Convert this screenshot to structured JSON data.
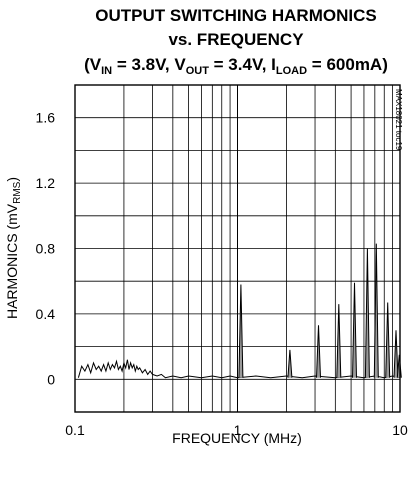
{
  "chart_data": {
    "type": "line",
    "title": {
      "line1": "OUTPUT SWITCHING HARMONICS",
      "line2": "vs. FREQUENCY",
      "line3_parts": [
        "(V",
        "IN",
        " = 3.8V, V",
        "OUT",
        " = 3.4V, I",
        "LOAD",
        " = 600mA)"
      ]
    },
    "figure_id": "MAX18021 toc19",
    "xlabel": "FREQUENCY (MHz)",
    "ylabel_parts": [
      "HARMONICS (mV",
      "RMS",
      ")"
    ],
    "xscale": "log",
    "xlim": [
      0.1,
      10
    ],
    "ylim": [
      -0.2,
      1.8
    ],
    "x_ticks": [
      {
        "value": 0.1,
        "label": "0.1"
      },
      {
        "value": 1,
        "label": "1"
      },
      {
        "value": 10,
        "label": "10"
      }
    ],
    "y_ticks": [
      {
        "value": 0,
        "label": "0"
      },
      {
        "value": 0.4,
        "label": "0.4"
      },
      {
        "value": 0.8,
        "label": "0.8"
      },
      {
        "value": 1.2,
        "label": "1.2"
      },
      {
        "value": 1.6,
        "label": "1.6"
      }
    ],
    "grid": true,
    "noise_floor": [
      [
        0.105,
        0.01
      ],
      [
        0.11,
        0.08
      ],
      [
        0.115,
        0.05
      ],
      [
        0.12,
        0.09
      ],
      [
        0.125,
        0.04
      ],
      [
        0.13,
        0.1
      ],
      [
        0.135,
        0.06
      ],
      [
        0.14,
        0.08
      ],
      [
        0.145,
        0.05
      ],
      [
        0.15,
        0.09
      ],
      [
        0.155,
        0.05
      ],
      [
        0.16,
        0.1
      ],
      [
        0.165,
        0.06
      ],
      [
        0.17,
        0.09
      ],
      [
        0.175,
        0.07
      ],
      [
        0.18,
        0.11
      ],
      [
        0.185,
        0.06
      ],
      [
        0.19,
        0.08
      ],
      [
        0.195,
        0.05
      ],
      [
        0.2,
        0.1
      ],
      [
        0.205,
        0.07
      ],
      [
        0.21,
        0.12
      ],
      [
        0.215,
        0.06
      ],
      [
        0.22,
        0.1
      ],
      [
        0.225,
        0.07
      ],
      [
        0.23,
        0.09
      ],
      [
        0.235,
        0.05
      ],
      [
        0.24,
        0.08
      ],
      [
        0.245,
        0.06
      ],
      [
        0.25,
        0.07
      ],
      [
        0.26,
        0.04
      ],
      [
        0.27,
        0.06
      ],
      [
        0.28,
        0.03
      ],
      [
        0.29,
        0.05
      ],
      [
        0.3,
        0.03
      ],
      [
        0.32,
        0.02
      ],
      [
        0.34,
        0.03
      ],
      [
        0.36,
        0.01
      ],
      [
        0.4,
        0.02
      ],
      [
        0.45,
        0.01
      ],
      [
        0.5,
        0.02
      ],
      [
        0.6,
        0.01
      ],
      [
        0.7,
        0.02
      ],
      [
        0.8,
        0.01
      ],
      [
        0.9,
        0.02
      ],
      [
        1.0,
        0.01
      ],
      [
        1.3,
        0.02
      ],
      [
        1.6,
        0.01
      ],
      [
        2.0,
        0.02
      ],
      [
        2.5,
        0.01
      ],
      [
        3.0,
        0.02
      ],
      [
        4.0,
        0.01
      ],
      [
        5.0,
        0.02
      ],
      [
        6.0,
        0.01
      ],
      [
        7.0,
        0.02
      ],
      [
        8.0,
        0.01
      ],
      [
        9.0,
        0.02
      ],
      [
        10.0,
        0.01
      ]
    ],
    "harmonics": [
      {
        "freq": 1.05,
        "value": 0.58
      },
      {
        "freq": 2.1,
        "value": 0.18
      },
      {
        "freq": 3.15,
        "value": 0.33
      },
      {
        "freq": 4.2,
        "value": 0.46
      },
      {
        "freq": 5.25,
        "value": 0.59
      },
      {
        "freq": 6.3,
        "value": 0.8
      },
      {
        "freq": 7.15,
        "value": 0.83
      },
      {
        "freq": 8.4,
        "value": 0.47
      },
      {
        "freq": 9.45,
        "value": 0.3
      },
      {
        "freq": 9.9,
        "value": 0.15
      }
    ]
  }
}
